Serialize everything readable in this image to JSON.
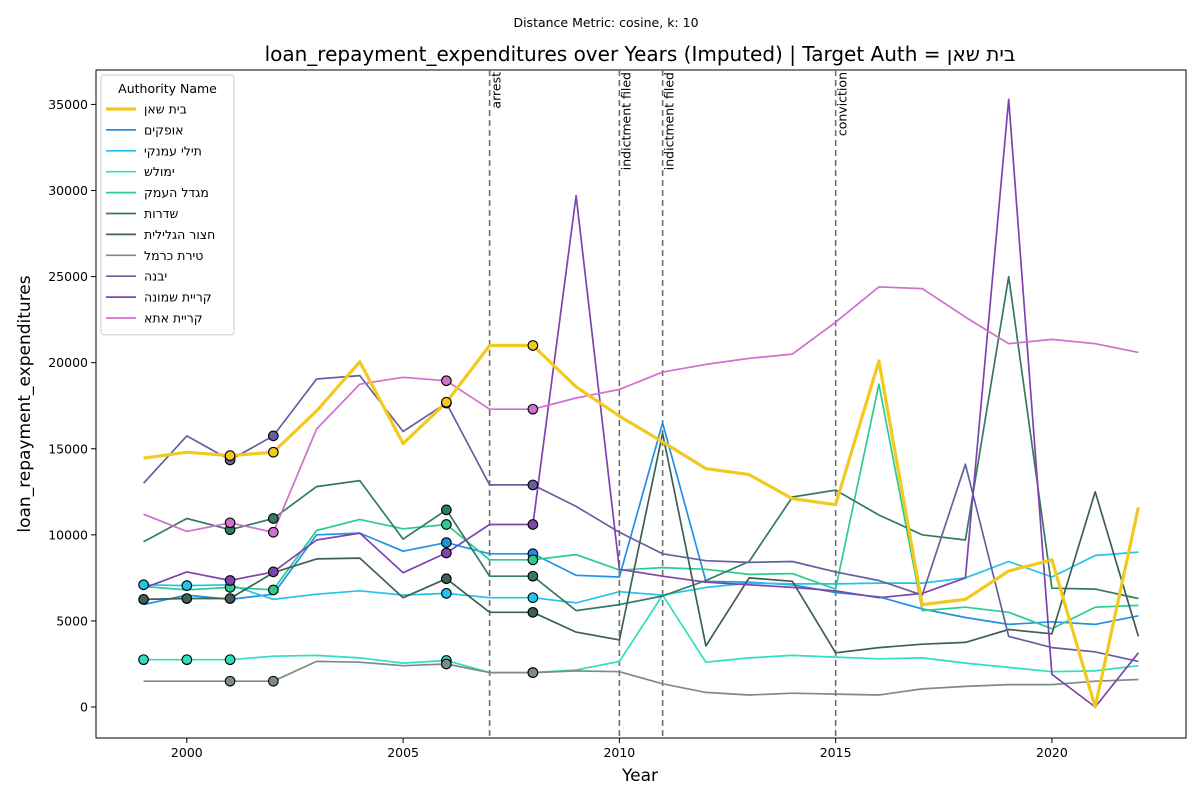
{
  "figure": {
    "suptitle": "Distance Metric: cosine, k: 10",
    "title": "loan_repayment_expenditures over Years (Imputed) | Target Auth = בית שאן"
  },
  "chart_data": {
    "type": "line",
    "title": "loan_repayment_expenditures over Years (Imputed) | Target Auth = בית שאן",
    "xlabel": "Year",
    "ylabel": "loan_repayment_expenditures",
    "xlim": [
      1997.9,
      2023.1
    ],
    "ylim": [
      -1800,
      37000
    ],
    "xticks": [
      2000,
      2005,
      2010,
      2015,
      2020
    ],
    "yticks": [
      0,
      5000,
      10000,
      15000,
      20000,
      25000,
      30000,
      35000
    ],
    "grid": false,
    "legend": {
      "title": "Authority Name",
      "placement": "top-left"
    },
    "x": [
      1999,
      2000,
      2001,
      2002,
      2003,
      2004,
      2005,
      2006,
      2007,
      2008,
      2009,
      2010,
      2011,
      2012,
      2013,
      2014,
      2015,
      2016,
      2017,
      2018,
      2019,
      2020,
      2021,
      2022
    ],
    "events": [
      {
        "year": 2007,
        "label": "arrest"
      },
      {
        "year": 2010,
        "label": "indictment filed"
      },
      {
        "year": 2011,
        "label": "indictment filed"
      },
      {
        "year": 2015,
        "label": "conviction"
      }
    ],
    "series": [
      {
        "name": "בית שאן",
        "color": "#f2c91f",
        "target": true,
        "values": [
          14450,
          14800,
          14600,
          14800,
          17200,
          20050,
          15300,
          17700,
          21000,
          21000,
          18600,
          16900,
          15400,
          13850,
          13500,
          12100,
          11750,
          20100,
          5950,
          6250,
          7900,
          8550,
          0,
          11600
        ],
        "imputed_years": [
          2001,
          2002,
          2006,
          2008
        ]
      },
      {
        "name": "אופקים",
        "color": "#2091e6",
        "target": false,
        "values": [
          5950,
          6500,
          6250,
          6550,
          10000,
          10100,
          9050,
          9550,
          8900,
          8900,
          7650,
          7550,
          16500,
          7300,
          7250,
          7100,
          6650,
          6400,
          5700,
          5200,
          4800,
          4950,
          4800,
          5300
        ],
        "imputed_years": [
          2006,
          2008
        ]
      },
      {
        "name": "תילי עמנקי",
        "color": "#22c3ec",
        "target": false,
        "values": [
          7100,
          7050,
          7100,
          6250,
          6550,
          6750,
          6500,
          6600,
          6350,
          6350,
          6050,
          6700,
          6500,
          6950,
          7200,
          7150,
          7150,
          7200,
          7200,
          7500,
          8450,
          7550,
          8800,
          9000
        ],
        "imputed_years": [
          1999,
          2000,
          2006,
          2008
        ]
      },
      {
        "name": "ימולש",
        "color": "#2de0c2",
        "target": false,
        "values": [
          2750,
          2750,
          2750,
          2950,
          3000,
          2850,
          2550,
          2700,
          2000,
          2000,
          2150,
          2650,
          6500,
          2600,
          2850,
          3000,
          2900,
          2800,
          2850,
          2550,
          2300,
          2050,
          2100,
          2400
        ],
        "imputed_years": [
          1999,
          2000,
          2001,
          2006,
          2008
        ]
      },
      {
        "name": "מגדל העמק",
        "color": "#2bcb91",
        "target": false,
        "values": [
          7000,
          6800,
          6950,
          6800,
          10250,
          10900,
          10350,
          10600,
          8550,
          8550,
          8850,
          7950,
          8100,
          8000,
          7700,
          7750,
          6850,
          18750,
          5600,
          5800,
          5500,
          4550,
          5800,
          5900
        ],
        "imputed_years": [
          2001,
          2002,
          2006,
          2008
        ]
      },
      {
        "name": "שדרות",
        "color": "#357a62",
        "target": false,
        "values": [
          9600,
          10950,
          10300,
          10950,
          12800,
          13150,
          9750,
          11450,
          7600,
          7600,
          5600,
          5950,
          6450,
          7350,
          8450,
          12200,
          12600,
          11150,
          10000,
          9700,
          25000,
          6900,
          6850,
          6300
        ],
        "imputed_years": [
          2001,
          2002,
          2006,
          2008
        ]
      },
      {
        "name": "חצור הגלילית",
        "color": "#3e5f53",
        "target": false,
        "values": [
          6250,
          6300,
          6300,
          7800,
          8600,
          8650,
          6350,
          7450,
          5500,
          5500,
          4350,
          3900,
          15900,
          3550,
          7500,
          7300,
          3150,
          3450,
          3650,
          3750,
          4500,
          4250,
          12500,
          4100
        ],
        "imputed_years": [
          1999,
          2000,
          2001,
          2006,
          2008
        ]
      },
      {
        "name": "טירת כרמל",
        "color": "#7f8c86",
        "target": false,
        "values": [
          1500,
          1500,
          1500,
          1500,
          2650,
          2600,
          2400,
          2500,
          2000,
          2000,
          2100,
          2050,
          1350,
          850,
          700,
          800,
          750,
          700,
          1050,
          1200,
          1300,
          1300,
          1500,
          1600
        ],
        "imputed_years": [
          2001,
          2002,
          2006,
          2008
        ]
      },
      {
        "name": "יבנה",
        "color": "#6460a0",
        "target": false,
        "values": [
          13000,
          15750,
          14350,
          15750,
          19050,
          19250,
          16000,
          17650,
          12900,
          12900,
          11650,
          10150,
          8900,
          8500,
          8400,
          8450,
          7850,
          7350,
          6500,
          14100,
          4100,
          3450,
          3200,
          2650
        ],
        "imputed_years": [
          2001,
          2002,
          2006,
          2008
        ]
      },
      {
        "name": "קריית שמונה",
        "color": "#7f44ad",
        "target": false,
        "values": [
          6900,
          7850,
          7350,
          7850,
          9700,
          10100,
          7800,
          8950,
          10600,
          10600,
          29700,
          8000,
          7600,
          7250,
          7100,
          6950,
          6750,
          6350,
          6600,
          7500,
          35300,
          1900,
          0,
          3150
        ],
        "imputed_years": [
          2001,
          2002,
          2006,
          2008
        ]
      },
      {
        "name": "קריית אתא",
        "color": "#d06fce",
        "target": false,
        "values": [
          11200,
          10200,
          10700,
          10150,
          16150,
          18750,
          19150,
          18950,
          17300,
          17300,
          17950,
          18450,
          19450,
          19900,
          20250,
          20500,
          22350,
          24400,
          24300,
          22650,
          21100,
          21350,
          21100,
          20600
        ],
        "imputed_years": [
          2001,
          2002,
          2006,
          2008
        ]
      }
    ]
  }
}
